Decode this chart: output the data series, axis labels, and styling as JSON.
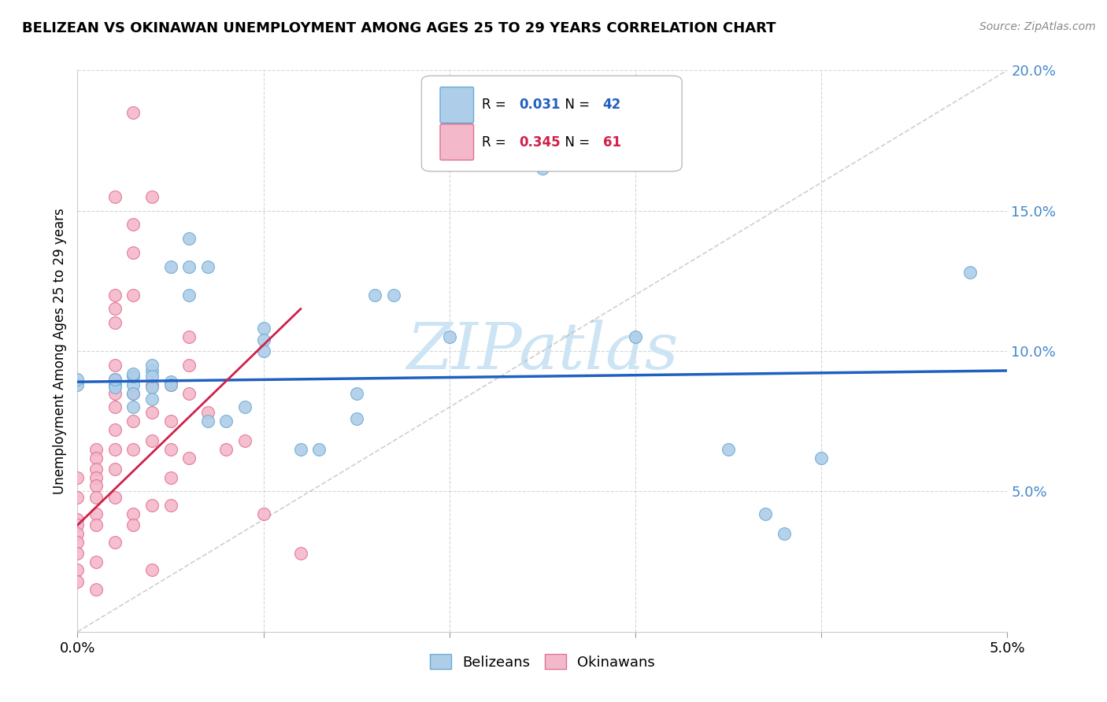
{
  "title": "BELIZEAN VS OKINAWAN UNEMPLOYMENT AMONG AGES 25 TO 29 YEARS CORRELATION CHART",
  "source": "Source: ZipAtlas.com",
  "ylabel": "Unemployment Among Ages 25 to 29 years",
  "legend_belizeans": "Belizeans",
  "legend_okinawans": "Okinawans",
  "r_belizeans": "0.031",
  "n_belizeans": "42",
  "r_okinawans": "0.345",
  "n_okinawans": "61",
  "xlim": [
    0.0,
    0.05
  ],
  "ylim": [
    0.0,
    0.2
  ],
  "yticks": [
    0.0,
    0.05,
    0.1,
    0.15,
    0.2
  ],
  "blue_scatter_color": "#aecde8",
  "blue_scatter_edge": "#6aaad4",
  "pink_scatter_color": "#f4b8cb",
  "pink_scatter_edge": "#e07090",
  "blue_line_color": "#2060c0",
  "pink_line_color": "#d0204a",
  "diag_color": "#bbbbbb",
  "watermark_color": "#cce4f4",
  "ytick_color": "#4488cc",
  "blue_legend_color": "#2060c0",
  "pink_legend_color": "#d0204a",
  "blue_trendline": [
    [
      0.0,
      0.089
    ],
    [
      0.05,
      0.093
    ]
  ],
  "pink_trendline": [
    [
      0.0,
      0.038
    ],
    [
      0.012,
      0.115
    ]
  ],
  "belizean_points": [
    [
      0.0,
      0.088
    ],
    [
      0.0,
      0.09
    ],
    [
      0.002,
      0.088
    ],
    [
      0.002,
      0.087
    ],
    [
      0.002,
      0.09
    ],
    [
      0.003,
      0.088
    ],
    [
      0.003,
      0.091
    ],
    [
      0.003,
      0.085
    ],
    [
      0.003,
      0.08
    ],
    [
      0.003,
      0.092
    ],
    [
      0.004,
      0.093
    ],
    [
      0.004,
      0.087
    ],
    [
      0.004,
      0.095
    ],
    [
      0.004,
      0.083
    ],
    [
      0.004,
      0.091
    ],
    [
      0.005,
      0.13
    ],
    [
      0.005,
      0.089
    ],
    [
      0.005,
      0.088
    ],
    [
      0.006,
      0.14
    ],
    [
      0.006,
      0.13
    ],
    [
      0.006,
      0.12
    ],
    [
      0.007,
      0.13
    ],
    [
      0.007,
      0.075
    ],
    [
      0.008,
      0.075
    ],
    [
      0.009,
      0.08
    ],
    [
      0.01,
      0.108
    ],
    [
      0.01,
      0.104
    ],
    [
      0.01,
      0.1
    ],
    [
      0.012,
      0.065
    ],
    [
      0.013,
      0.065
    ],
    [
      0.015,
      0.085
    ],
    [
      0.015,
      0.076
    ],
    [
      0.016,
      0.12
    ],
    [
      0.017,
      0.12
    ],
    [
      0.02,
      0.105
    ],
    [
      0.025,
      0.165
    ],
    [
      0.03,
      0.105
    ],
    [
      0.035,
      0.065
    ],
    [
      0.037,
      0.042
    ],
    [
      0.038,
      0.035
    ],
    [
      0.04,
      0.062
    ],
    [
      0.048,
      0.128
    ]
  ],
  "okinawan_points": [
    [
      0.0,
      0.055
    ],
    [
      0.0,
      0.048
    ],
    [
      0.0,
      0.04
    ],
    [
      0.0,
      0.038
    ],
    [
      0.0,
      0.035
    ],
    [
      0.0,
      0.032
    ],
    [
      0.0,
      0.028
    ],
    [
      0.0,
      0.022
    ],
    [
      0.0,
      0.018
    ],
    [
      0.001,
      0.065
    ],
    [
      0.001,
      0.062
    ],
    [
      0.001,
      0.058
    ],
    [
      0.001,
      0.055
    ],
    [
      0.001,
      0.052
    ],
    [
      0.001,
      0.048
    ],
    [
      0.001,
      0.042
    ],
    [
      0.001,
      0.038
    ],
    [
      0.001,
      0.025
    ],
    [
      0.001,
      0.015
    ],
    [
      0.002,
      0.155
    ],
    [
      0.002,
      0.12
    ],
    [
      0.002,
      0.115
    ],
    [
      0.002,
      0.11
    ],
    [
      0.002,
      0.095
    ],
    [
      0.002,
      0.09
    ],
    [
      0.002,
      0.085
    ],
    [
      0.002,
      0.08
    ],
    [
      0.002,
      0.072
    ],
    [
      0.002,
      0.065
    ],
    [
      0.002,
      0.058
    ],
    [
      0.002,
      0.048
    ],
    [
      0.002,
      0.032
    ],
    [
      0.003,
      0.185
    ],
    [
      0.003,
      0.145
    ],
    [
      0.003,
      0.135
    ],
    [
      0.003,
      0.12
    ],
    [
      0.003,
      0.085
    ],
    [
      0.003,
      0.075
    ],
    [
      0.003,
      0.065
    ],
    [
      0.003,
      0.042
    ],
    [
      0.003,
      0.038
    ],
    [
      0.004,
      0.155
    ],
    [
      0.004,
      0.088
    ],
    [
      0.004,
      0.078
    ],
    [
      0.004,
      0.068
    ],
    [
      0.004,
      0.045
    ],
    [
      0.004,
      0.022
    ],
    [
      0.005,
      0.088
    ],
    [
      0.005,
      0.075
    ],
    [
      0.005,
      0.065
    ],
    [
      0.005,
      0.055
    ],
    [
      0.005,
      0.045
    ],
    [
      0.006,
      0.105
    ],
    [
      0.006,
      0.095
    ],
    [
      0.006,
      0.085
    ],
    [
      0.006,
      0.062
    ],
    [
      0.007,
      0.078
    ],
    [
      0.008,
      0.065
    ],
    [
      0.009,
      0.068
    ],
    [
      0.01,
      0.042
    ],
    [
      0.012,
      0.028
    ]
  ]
}
